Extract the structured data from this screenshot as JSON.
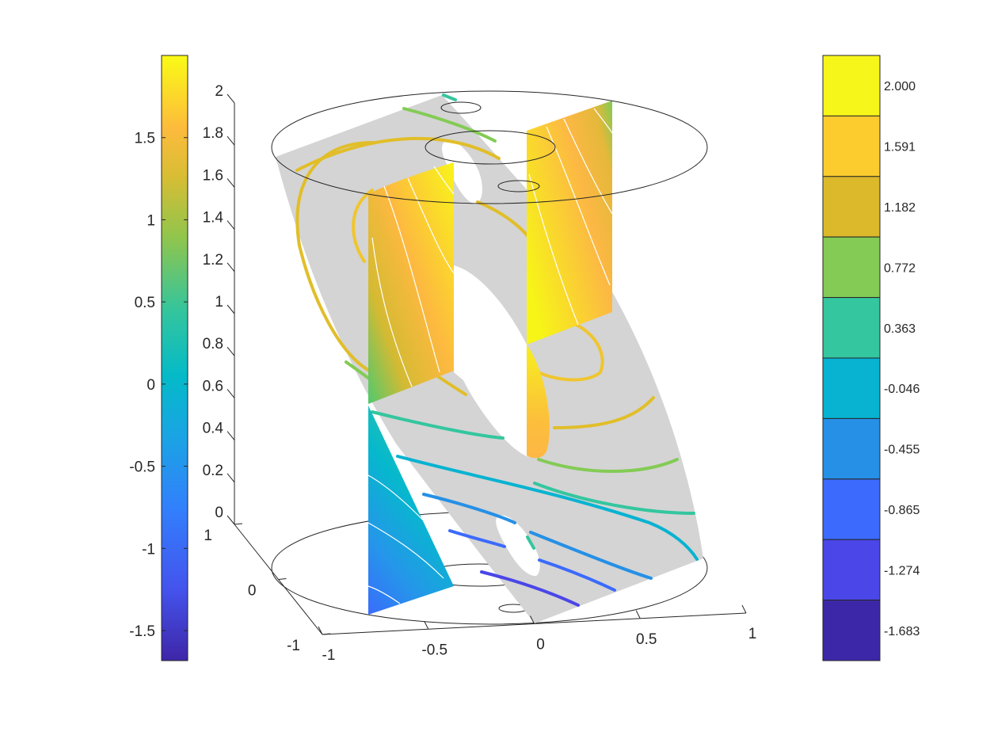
{
  "chart_data": {
    "type": "surface-3d-slices",
    "z_axis": {
      "ticks": [
        "0",
        "0.2",
        "0.4",
        "0.6",
        "0.8",
        "1",
        "1.2",
        "1.4",
        "1.6",
        "1.8",
        "2"
      ],
      "range": [
        0,
        2
      ]
    },
    "x_axis": {
      "ticks": [
        "-1",
        "-0.5",
        "0",
        "0.5",
        "1"
      ],
      "range": [
        -1,
        1
      ]
    },
    "y_axis": {
      "ticks": [
        "-1",
        "0",
        "1"
      ],
      "range": [
        -1,
        1
      ]
    },
    "colorbar_left": {
      "type": "continuous",
      "colormap": "parula",
      "ticks": [
        "-1.5",
        "-1",
        "-0.5",
        "0",
        "0.5",
        "1",
        "1.5"
      ],
      "range": [
        -1.683,
        2.0
      ]
    },
    "colorbar_right": {
      "type": "discrete",
      "levels": [
        "2.000",
        "1.591",
        "1.182",
        "0.772",
        "0.363",
        "-0.046",
        "-0.455",
        "-0.865",
        "-1.274",
        "-1.683"
      ],
      "colors": [
        "#f7f61a",
        "#fccc2e",
        "#dbb92b",
        "#83cb55",
        "#34c69f",
        "#07b3d1",
        "#2590e6",
        "#3b6afc",
        "#4a46e8",
        "#3c27a8"
      ]
    },
    "slices": [
      "cylinder-top",
      "cylinder-bottom",
      "tilted-gray-plane",
      "vertical-slice-x-left",
      "vertical-slice-x-right"
    ],
    "grid": false
  },
  "colors": {
    "axis": "#262626",
    "plane": "#d4d4d4",
    "background": "#ffffff"
  }
}
